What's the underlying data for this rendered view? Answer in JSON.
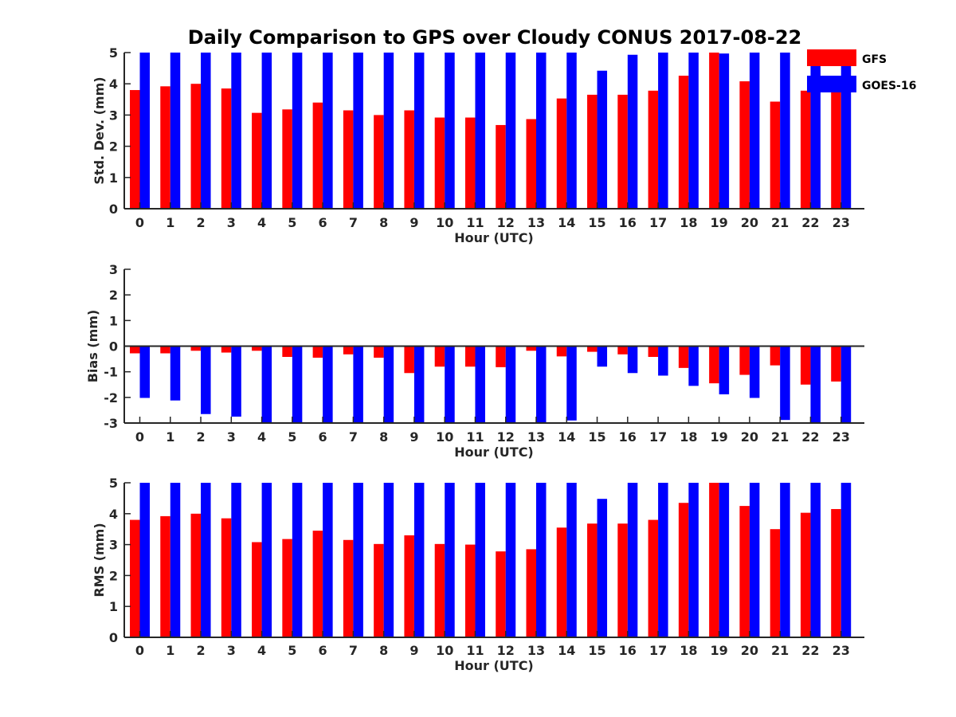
{
  "title": "Daily Comparison to GPS over Cloudy CONUS 2017-08-22",
  "legend": [
    {
      "name": "GFS",
      "color": "#ff0000"
    },
    {
      "name": "GOES-16",
      "color": "#0000ff"
    }
  ],
  "chart_data": [
    {
      "type": "bar",
      "xlabel": "Hour (UTC)",
      "ylabel": "Std. Dev. (mm)",
      "ylim": [
        0,
        5
      ],
      "yticks": [
        0,
        1,
        2,
        3,
        4,
        5
      ],
      "categories": [
        "0",
        "1",
        "2",
        "3",
        "4",
        "5",
        "6",
        "7",
        "8",
        "9",
        "10",
        "11",
        "12",
        "13",
        "14",
        "15",
        "16",
        "17",
        "18",
        "19",
        "20",
        "21",
        "22",
        "23"
      ],
      "series": [
        {
          "name": "GFS",
          "color": "#ff0000",
          "values": [
            3.8,
            3.92,
            4.0,
            3.85,
            3.07,
            3.18,
            3.4,
            3.15,
            3.0,
            3.15,
            2.92,
            2.92,
            2.68,
            2.87,
            3.53,
            3.65,
            3.65,
            3.78,
            4.26,
            5.0,
            4.08,
            3.43,
            3.78,
            3.9
          ]
        },
        {
          "name": "GOES-16",
          "color": "#0000ff",
          "values": [
            5,
            5,
            5,
            5,
            5,
            5,
            5,
            5,
            5,
            5,
            5,
            5,
            5,
            5,
            5,
            4.42,
            4.93,
            5,
            5,
            4.97,
            5,
            5,
            5,
            5
          ]
        }
      ]
    },
    {
      "type": "bar",
      "xlabel": "Hour (UTC)",
      "ylabel": "Bias (mm)",
      "ylim": [
        -3,
        3
      ],
      "yticks": [
        -3,
        -2,
        -1,
        0,
        1,
        2,
        3
      ],
      "categories": [
        "0",
        "1",
        "2",
        "3",
        "4",
        "5",
        "6",
        "7",
        "8",
        "9",
        "10",
        "11",
        "12",
        "13",
        "14",
        "15",
        "16",
        "17",
        "18",
        "19",
        "20",
        "21",
        "22",
        "23"
      ],
      "series": [
        {
          "name": "GFS",
          "color": "#ff0000",
          "values": [
            -0.28,
            -0.28,
            -0.18,
            -0.25,
            -0.18,
            -0.42,
            -0.45,
            -0.32,
            -0.45,
            -1.05,
            -0.8,
            -0.8,
            -0.82,
            -0.18,
            -0.4,
            -0.22,
            -0.32,
            -0.42,
            -0.85,
            -1.45,
            -1.12,
            -0.75,
            -1.5,
            -1.38
          ]
        },
        {
          "name": "GOES-16",
          "color": "#0000ff",
          "values": [
            -2.02,
            -2.12,
            -2.65,
            -2.75,
            -3,
            -3,
            -3,
            -3,
            -3,
            -3,
            -3,
            -3,
            -3,
            -3,
            -2.9,
            -0.8,
            -1.05,
            -1.15,
            -1.55,
            -1.88,
            -2.02,
            -2.88,
            -3,
            -3
          ]
        }
      ]
    },
    {
      "type": "bar",
      "xlabel": "Hour (UTC)",
      "ylabel": "RMS (mm)",
      "ylim": [
        0,
        5
      ],
      "yticks": [
        0,
        1,
        2,
        3,
        4,
        5
      ],
      "categories": [
        "0",
        "1",
        "2",
        "3",
        "4",
        "5",
        "6",
        "7",
        "8",
        "9",
        "10",
        "11",
        "12",
        "13",
        "14",
        "15",
        "16",
        "17",
        "18",
        "19",
        "20",
        "21",
        "22",
        "23"
      ],
      "series": [
        {
          "name": "GFS",
          "color": "#ff0000",
          "values": [
            3.8,
            3.92,
            4.0,
            3.85,
            3.08,
            3.18,
            3.45,
            3.15,
            3.02,
            3.3,
            3.02,
            3.0,
            2.78,
            2.85,
            3.55,
            3.68,
            3.68,
            3.8,
            4.35,
            5.0,
            4.25,
            3.5,
            4.03,
            4.15
          ]
        },
        {
          "name": "GOES-16",
          "color": "#0000ff",
          "values": [
            5,
            5,
            5,
            5,
            5,
            5,
            5,
            5,
            5,
            5,
            5,
            5,
            5,
            5,
            5,
            4.48,
            5,
            5,
            5,
            5,
            5,
            5,
            5,
            5
          ]
        }
      ]
    }
  ]
}
